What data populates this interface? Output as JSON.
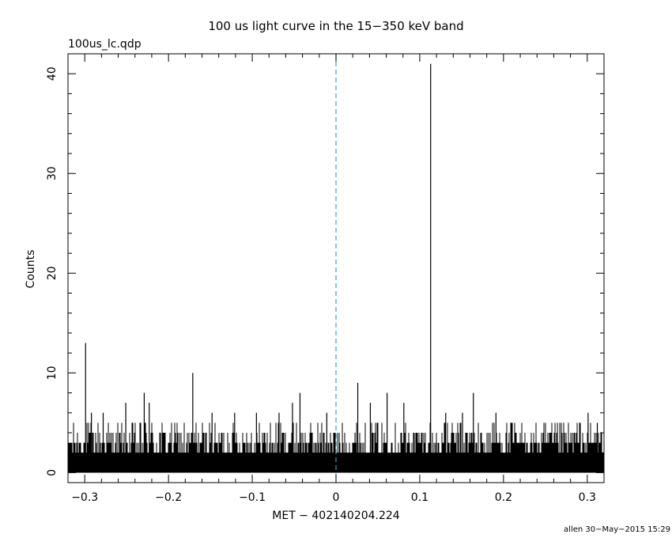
{
  "chart_data": {
    "type": "bar",
    "title": "100 us light curve in the 15−350 keV band",
    "file_label": "100us_lc.qdp",
    "xlabel": "MET − 402140204.224",
    "ylabel": "Counts",
    "footer": "allen 30−May−2015 15:29",
    "xlim": [
      -0.32,
      0.32
    ],
    "ylim": [
      -1,
      42
    ],
    "bin_width": 0.0001,
    "x_ticks": [
      {
        "value": -0.3,
        "label": "−0.3"
      },
      {
        "value": -0.2,
        "label": "−0.2"
      },
      {
        "value": -0.1,
        "label": "−0.1"
      },
      {
        "value": 0,
        "label": "0"
      },
      {
        "value": 0.1,
        "label": "0.1"
      },
      {
        "value": 0.2,
        "label": "0.2"
      },
      {
        "value": 0.3,
        "label": "0.3"
      }
    ],
    "y_ticks": [
      {
        "value": 0,
        "label": "0"
      },
      {
        "value": 10,
        "label": "10"
      },
      {
        "value": 20,
        "label": "20"
      },
      {
        "value": 30,
        "label": "30"
      },
      {
        "value": 40,
        "label": "40"
      }
    ],
    "trigger_line": {
      "x": 0,
      "color": "#2aa8c8",
      "style": "dashed"
    },
    "background_level": [
      0,
      4
    ],
    "peaks": [
      {
        "x": -0.299,
        "y": 13
      },
      {
        "x": -0.292,
        "y": 6
      },
      {
        "x": -0.278,
        "y": 6
      },
      {
        "x": -0.251,
        "y": 7
      },
      {
        "x": -0.229,
        "y": 8
      },
      {
        "x": -0.223,
        "y": 7
      },
      {
        "x": -0.171,
        "y": 10
      },
      {
        "x": -0.148,
        "y": 6
      },
      {
        "x": -0.121,
        "y": 6
      },
      {
        "x": -0.095,
        "y": 6
      },
      {
        "x": -0.068,
        "y": 6
      },
      {
        "x": -0.052,
        "y": 7
      },
      {
        "x": -0.043,
        "y": 8
      },
      {
        "x": -0.011,
        "y": 6
      },
      {
        "x": 0.026,
        "y": 9
      },
      {
        "x": 0.041,
        "y": 7
      },
      {
        "x": 0.061,
        "y": 8
      },
      {
        "x": 0.081,
        "y": 7
      },
      {
        "x": 0.113,
        "y": 41
      },
      {
        "x": 0.131,
        "y": 6
      },
      {
        "x": 0.151,
        "y": 6
      },
      {
        "x": 0.164,
        "y": 8
      },
      {
        "x": 0.191,
        "y": 6
      },
      {
        "x": 0.301,
        "y": 6
      },
      {
        "x": 0.312,
        "y": 5
      }
    ],
    "colors": {
      "bars": "#000000",
      "axes": "#000000",
      "trigger": "#2aa8c8"
    }
  }
}
